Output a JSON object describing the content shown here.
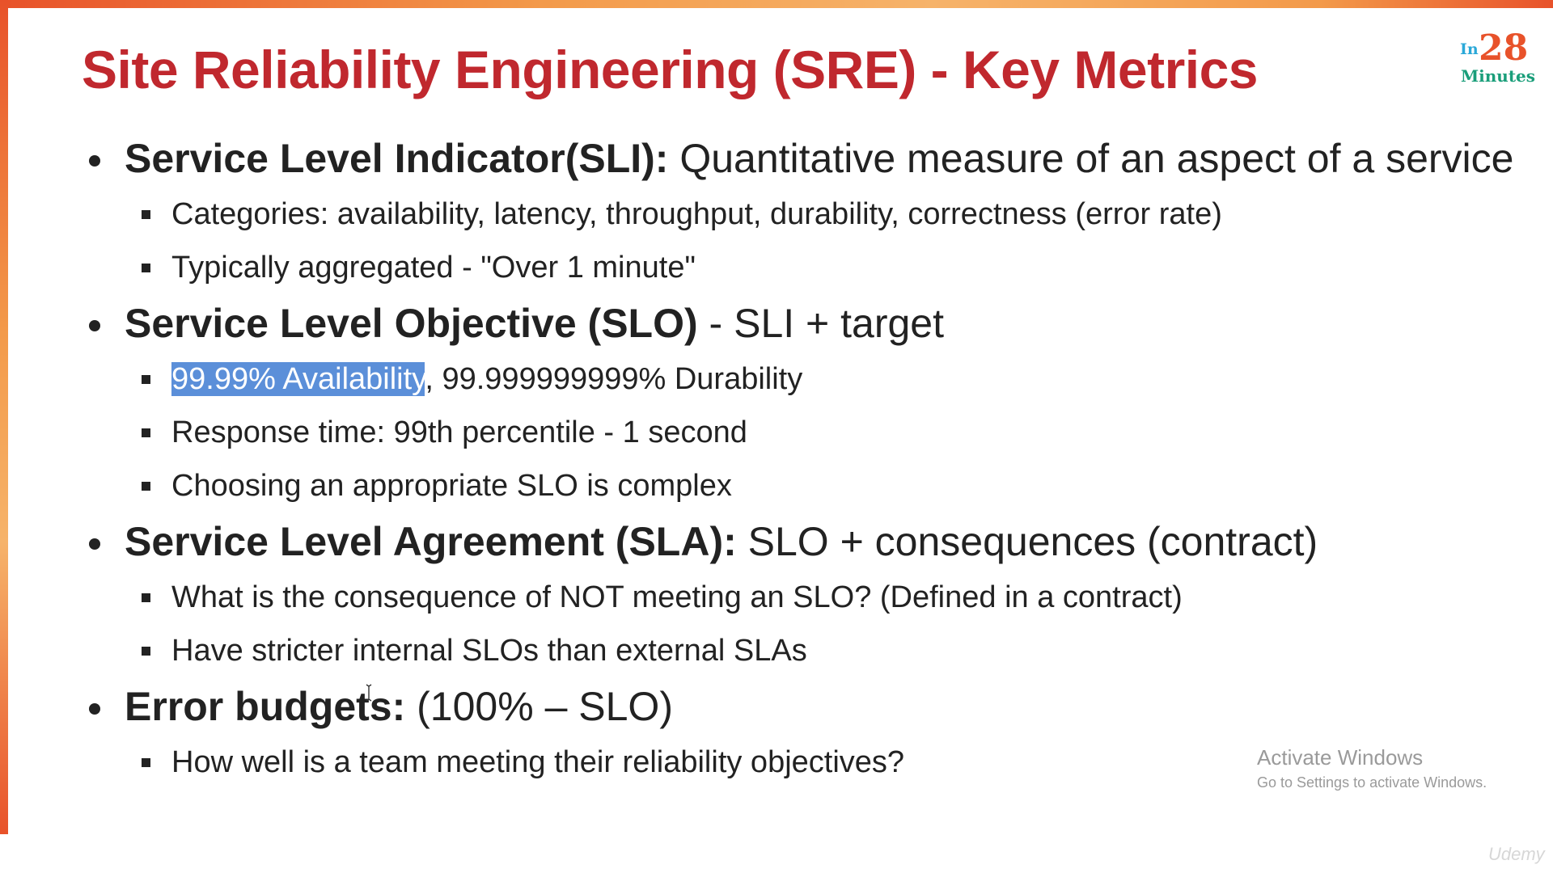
{
  "slide": {
    "title": "Site Reliability Engineering (SRE) - Key Metrics",
    "logo": {
      "in": "In",
      "number": "28",
      "sub": "Minutes"
    },
    "bullets": [
      {
        "term": "Service Level Indicator(SLI)",
        "separator": ":",
        "rest": " Quantitative measure of an aspect of a service",
        "sub": [
          "Categories: availability, latency, throughput, durability, correctness (error rate)",
          "Typically aggregated - \"Over 1 minute\""
        ]
      },
      {
        "term": "Service Level Objective (SLO)",
        "separator": "",
        "rest": " - SLI + target",
        "sub_highlight": {
          "highlighted": "99.99% Availability",
          "rest": ", 99.999999999% Durability"
        },
        "sub": [
          "Response time: 99th percentile - 1 second",
          "Choosing an appropriate SLO is complex"
        ]
      },
      {
        "term": "Service Level Agreement (SLA)",
        "separator": ":",
        "rest": " SLO + consequences (contract)",
        "sub": [
          "What is the consequence of NOT meeting an SLO? (Defined in a contract)",
          "Have stricter internal SLOs than external SLAs"
        ]
      },
      {
        "term": "Error budgets",
        "separator": ":",
        "rest": " (100% – SLO)",
        "sub": [
          "How well is a team meeting their reliability objectives?"
        ]
      }
    ]
  },
  "watermark": {
    "title": "Activate Windows",
    "subtitle": "Go to Settings to activate Windows."
  },
  "brand": "Udemy"
}
